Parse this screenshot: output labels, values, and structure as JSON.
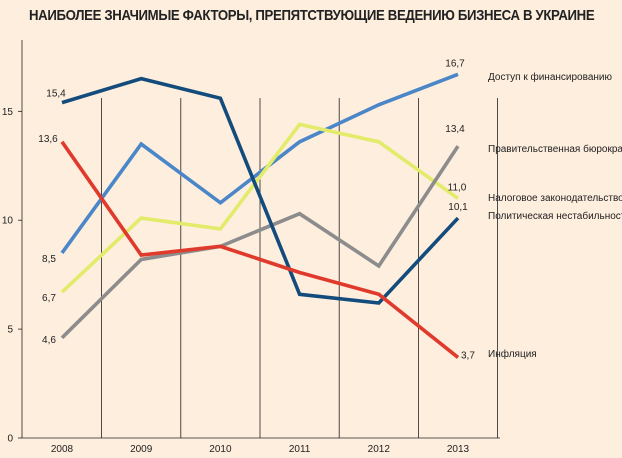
{
  "chart_data": {
    "type": "line",
    "title": "НАИБОЛЕЕ ЗНАЧИМЫЕ ФАКТОРЫ, ПРЕПЯТСТВУЮЩИЕ ВЕДЕНИЮ БИЗНЕСА В УКРАИНЕ",
    "xlabel": "",
    "ylabel": "",
    "categories": [
      "2008",
      "2009",
      "2010",
      "2011",
      "2012",
      "2013"
    ],
    "ylim": [
      0,
      18
    ],
    "yticks": [
      "0",
      "5",
      "10",
      "15"
    ],
    "series": [
      {
        "name": "Доступ к финансированию",
        "color": "#4a86c8",
        "values": [
          8.5,
          13.5,
          10.8,
          13.6,
          15.3,
          16.7
        ],
        "start_label": "8,5",
        "end_label": "16,7"
      },
      {
        "name": "Правительственная бюрократия",
        "color": "#8c8c8c",
        "values": [
          4.6,
          8.2,
          8.8,
          10.3,
          7.9,
          13.4
        ],
        "start_label": "4,6",
        "end_label": "13,4"
      },
      {
        "name": "Налоговое законодательство",
        "color": "#e3eb6a",
        "values": [
          6.7,
          10.1,
          9.6,
          14.4,
          13.6,
          11.0
        ],
        "start_label": "6,7",
        "end_label": "11,0"
      },
      {
        "name": "Политическая нестабильность",
        "color": "#134c7c",
        "values": [
          15.4,
          16.5,
          15.6,
          6.6,
          6.2,
          10.1
        ],
        "start_label": "15,4",
        "end_label": "10,1"
      },
      {
        "name": "Инфляция",
        "color": "#e03a2c",
        "values": [
          13.6,
          8.4,
          8.8,
          7.6,
          6.6,
          3.7
        ],
        "start_label": "13,6",
        "end_label": "3,7"
      }
    ]
  }
}
